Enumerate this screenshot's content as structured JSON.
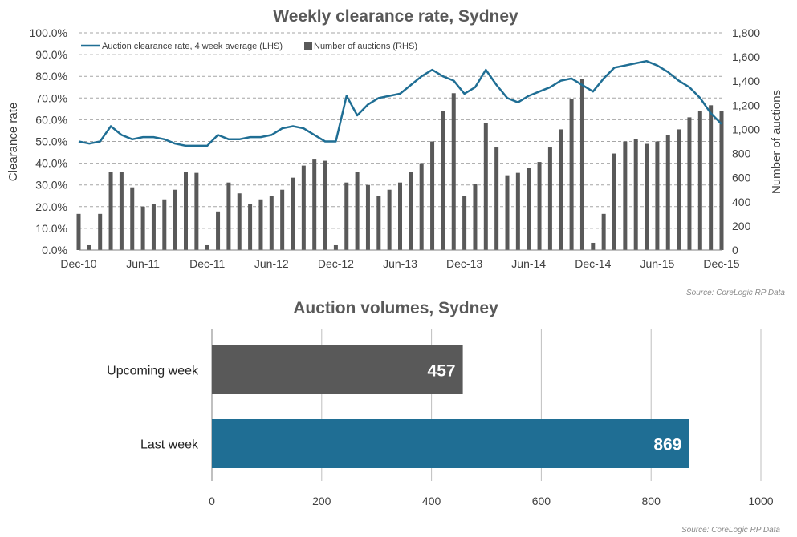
{
  "chart_data": [
    {
      "type": "line",
      "title": "Weekly clearance rate, Sydney",
      "ylabel_left": "Clearance rate",
      "ylabel_right": "Number of auctions",
      "y_left_ticks": [
        "0.0%",
        "10.0%",
        "20.0%",
        "30.0%",
        "40.0%",
        "50.0%",
        "60.0%",
        "70.0%",
        "80.0%",
        "90.0%",
        "100.0%"
      ],
      "y_left_lim": [
        0,
        100
      ],
      "y_right_ticks": [
        "0",
        "200",
        "400",
        "600",
        "800",
        "1,000",
        "1,200",
        "1,400",
        "1,600",
        "1,800"
      ],
      "y_right_lim": [
        0,
        1800
      ],
      "x_ticks": [
        "Dec-10",
        "Jun-11",
        "Dec-11",
        "Jun-12",
        "Dec-12",
        "Jun-13",
        "Dec-13",
        "Jun-14",
        "Dec-14",
        "Jun-15",
        "Dec-15"
      ],
      "grid": "horizontal dashed",
      "legend_position": "top-left",
      "legend": [
        {
          "label": "Auction clearance rate, 4 week average (LHS)",
          "type": "line",
          "color": "#1F6E94"
        },
        {
          "label": "Number of auctions (RHS)",
          "type": "bar",
          "color": "#595959"
        }
      ],
      "series": [
        {
          "name": "Auction clearance rate, 4 week average (LHS)",
          "axis": "left",
          "note": "approximate monthly readings",
          "x": [
            "Dec-10",
            "Jan-11",
            "Feb-11",
            "Mar-11",
            "Apr-11",
            "May-11",
            "Jun-11",
            "Jul-11",
            "Aug-11",
            "Sep-11",
            "Oct-11",
            "Nov-11",
            "Dec-11",
            "Jan-12",
            "Feb-12",
            "Mar-12",
            "Apr-12",
            "May-12",
            "Jun-12",
            "Jul-12",
            "Aug-12",
            "Sep-12",
            "Oct-12",
            "Nov-12",
            "Dec-12",
            "Jan-13",
            "Feb-13",
            "Mar-13",
            "Apr-13",
            "May-13",
            "Jun-13",
            "Jul-13",
            "Aug-13",
            "Sep-13",
            "Oct-13",
            "Nov-13",
            "Dec-13",
            "Jan-14",
            "Feb-14",
            "Mar-14",
            "Apr-14",
            "May-14",
            "Jun-14",
            "Jul-14",
            "Aug-14",
            "Sep-14",
            "Oct-14",
            "Nov-14",
            "Dec-14",
            "Jan-15",
            "Feb-15",
            "Mar-15",
            "Apr-15",
            "May-15",
            "Jun-15",
            "Jul-15",
            "Aug-15",
            "Sep-15",
            "Oct-15",
            "Nov-15",
            "Dec-15"
          ],
          "values": [
            50,
            49,
            50,
            57,
            53,
            51,
            52,
            52,
            51,
            49,
            48,
            48,
            48,
            53,
            51,
            51,
            52,
            52,
            53,
            56,
            57,
            56,
            53,
            50,
            50,
            71,
            62,
            67,
            70,
            71,
            72,
            76,
            80,
            83,
            80,
            78,
            72,
            75,
            83,
            76,
            70,
            68,
            71,
            73,
            75,
            78,
            79,
            76,
            73,
            79,
            84,
            85,
            86,
            87,
            85,
            82,
            78,
            75,
            70,
            63,
            58
          ]
        },
        {
          "name": "Number of auctions (RHS)",
          "axis": "right",
          "type": "bar",
          "note": "approximate monthly readings",
          "x": [
            "Dec-10",
            "Jan-11",
            "Feb-11",
            "Mar-11",
            "Apr-11",
            "May-11",
            "Jun-11",
            "Jul-11",
            "Aug-11",
            "Sep-11",
            "Oct-11",
            "Nov-11",
            "Dec-11",
            "Jan-12",
            "Feb-12",
            "Mar-12",
            "Apr-12",
            "May-12",
            "Jun-12",
            "Jul-12",
            "Aug-12",
            "Sep-12",
            "Oct-12",
            "Nov-12",
            "Dec-12",
            "Jan-13",
            "Feb-13",
            "Mar-13",
            "Apr-13",
            "May-13",
            "Jun-13",
            "Jul-13",
            "Aug-13",
            "Sep-13",
            "Oct-13",
            "Nov-13",
            "Dec-13",
            "Jan-14",
            "Feb-14",
            "Mar-14",
            "Apr-14",
            "May-14",
            "Jun-14",
            "Jul-14",
            "Aug-14",
            "Sep-14",
            "Oct-14",
            "Nov-14",
            "Dec-14",
            "Jan-15",
            "Feb-15",
            "Mar-15",
            "Apr-15",
            "May-15",
            "Jun-15",
            "Jul-15",
            "Aug-15",
            "Sep-15",
            "Oct-15",
            "Nov-15",
            "Dec-15"
          ],
          "values": [
            300,
            40,
            300,
            650,
            650,
            520,
            360,
            380,
            420,
            500,
            650,
            640,
            40,
            320,
            560,
            470,
            380,
            420,
            450,
            500,
            600,
            700,
            750,
            740,
            40,
            560,
            650,
            540,
            450,
            500,
            560,
            650,
            720,
            900,
            1150,
            1300,
            450,
            550,
            1050,
            850,
            620,
            640,
            680,
            730,
            850,
            1000,
            1250,
            1420,
            60,
            300,
            800,
            900,
            920,
            880,
            900,
            950,
            1000,
            1100,
            1150,
            1200,
            1150
          ]
        }
      ],
      "source": "Source: CoreLogic  RP Data"
    },
    {
      "type": "bar",
      "orientation": "horizontal",
      "title": "Auction volumes, Sydney",
      "categories": [
        "Upcoming week",
        "Last week"
      ],
      "values": [
        457,
        869
      ],
      "colors": [
        "#595959",
        "#1F6E94"
      ],
      "x_ticks": [
        "0",
        "200",
        "400",
        "600",
        "800",
        "1000"
      ],
      "xlim": [
        0,
        1000
      ],
      "grid": "vertical",
      "source": "Source: CoreLogic  RP Data"
    }
  ]
}
